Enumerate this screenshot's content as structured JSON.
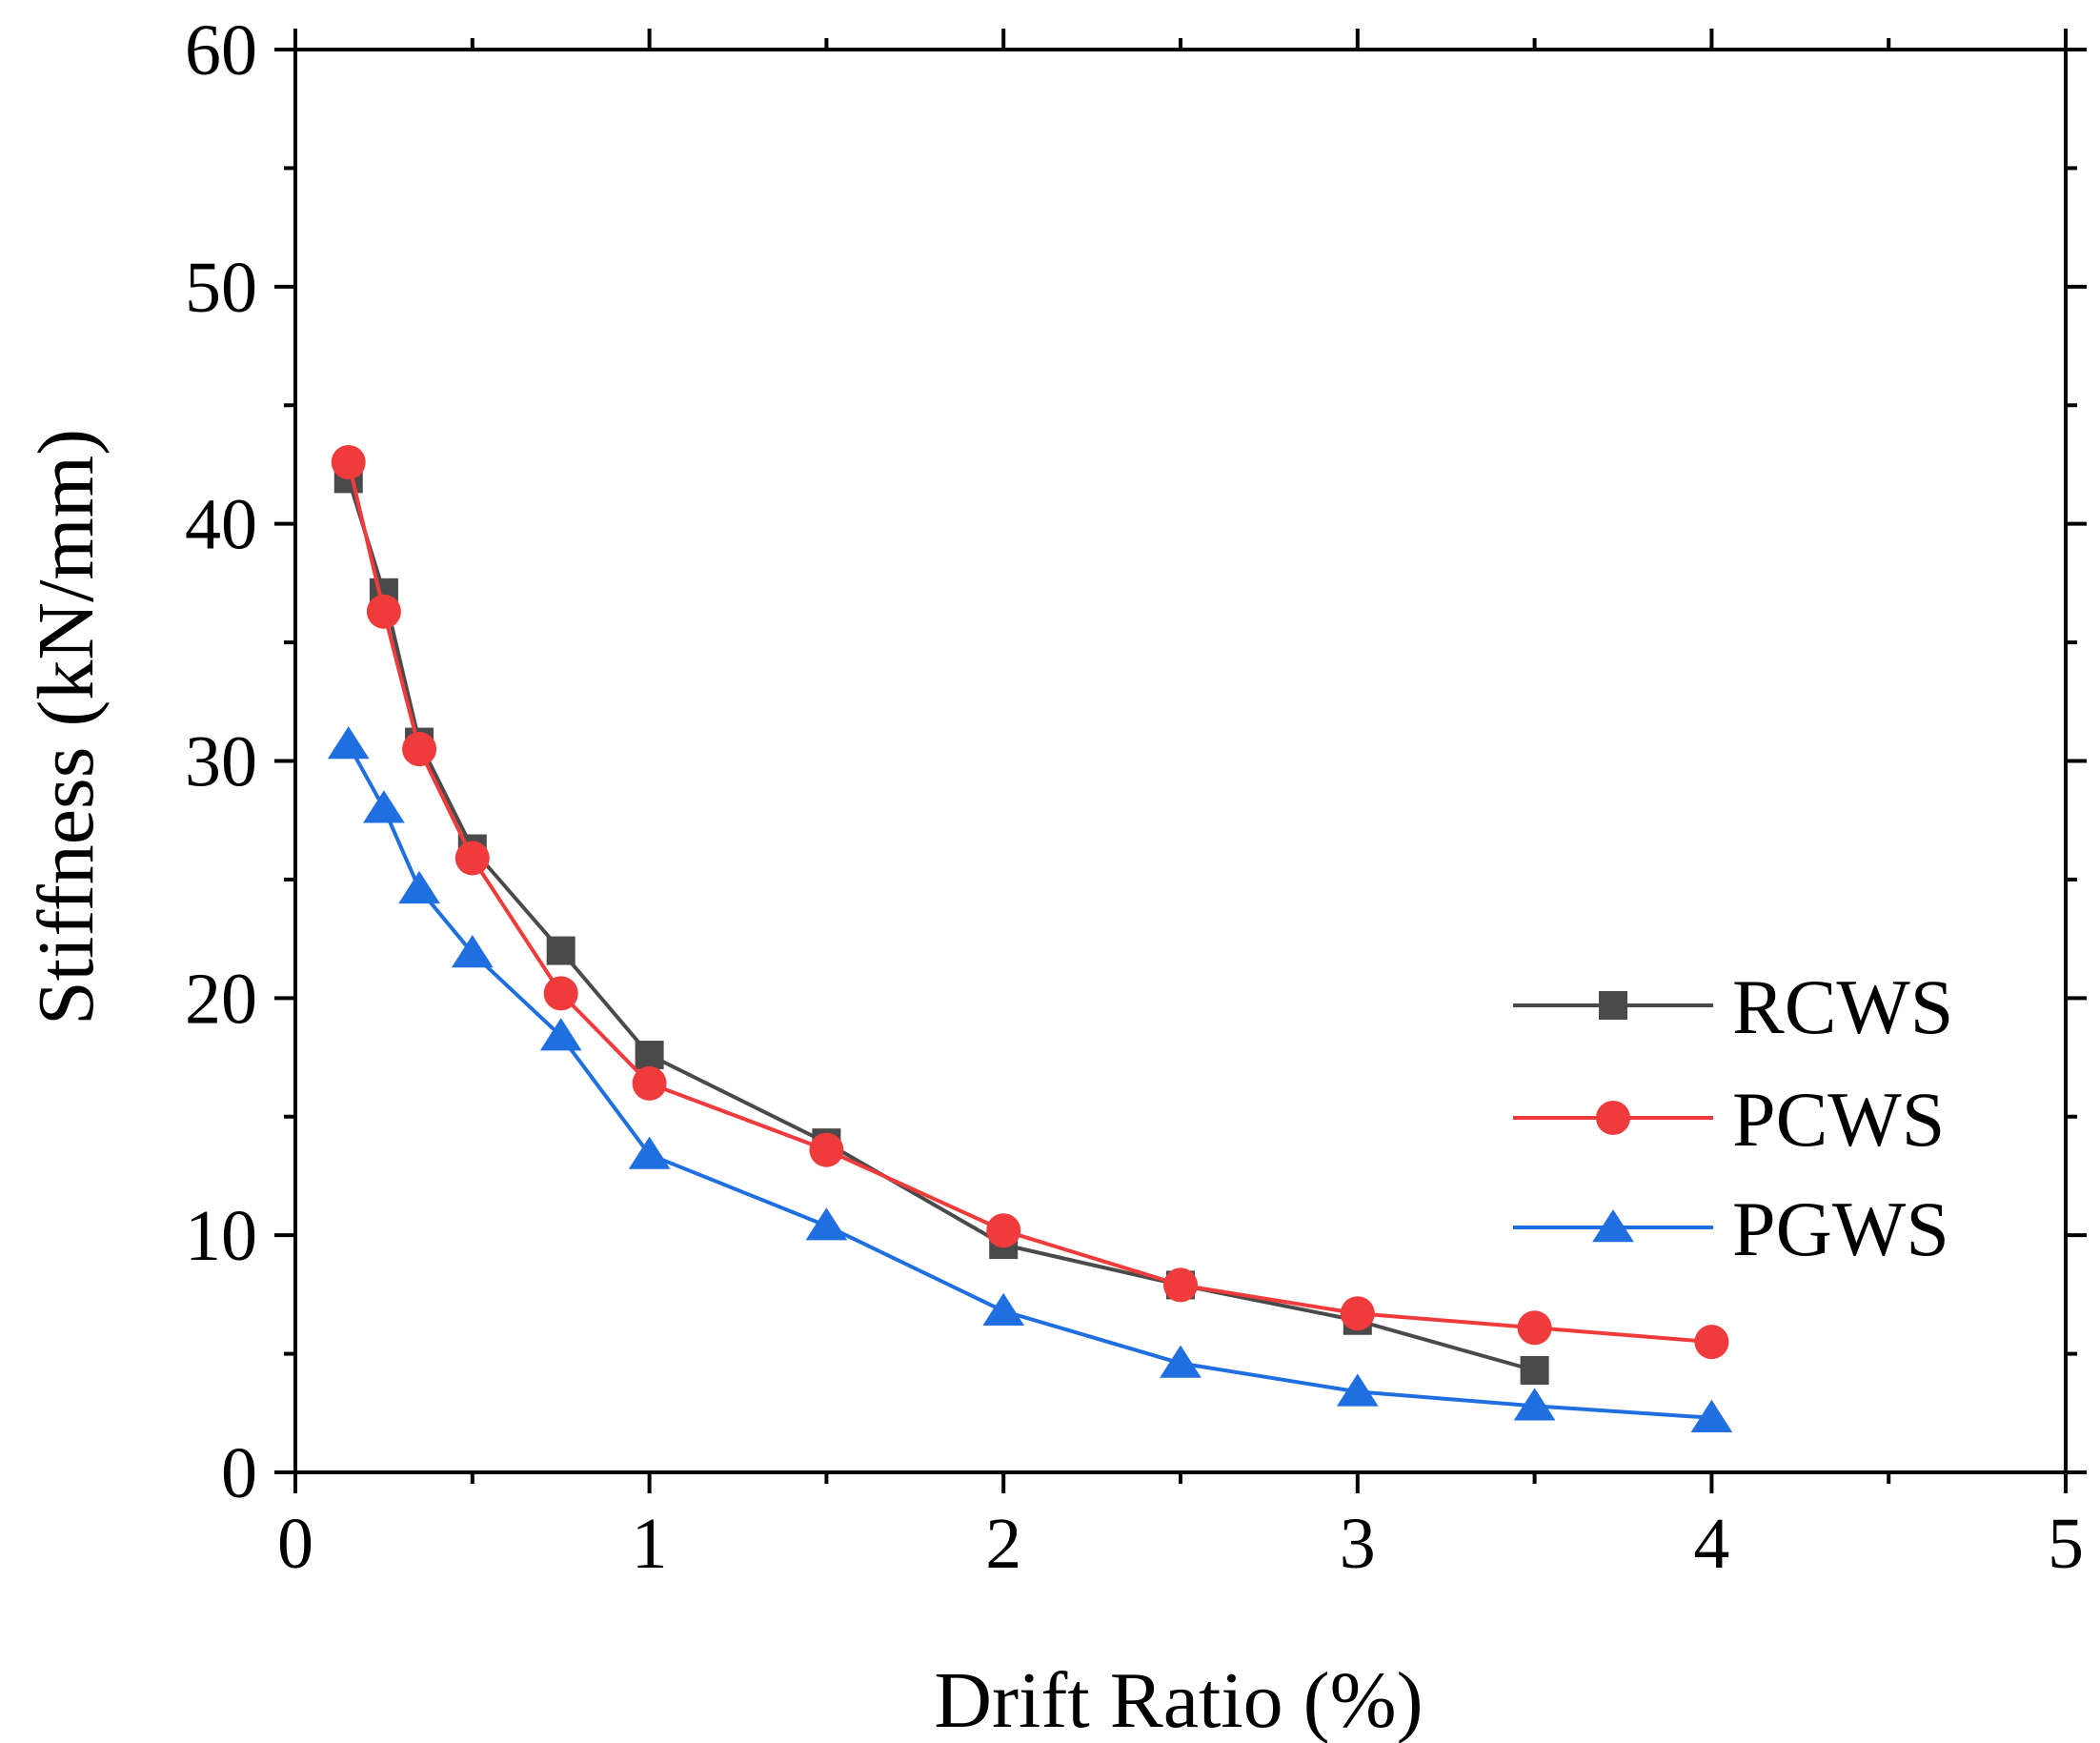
{
  "chart_data": {
    "type": "line",
    "title": "",
    "xlabel": "Drift Ratio (%)",
    "ylabel": "Stiffness (kN/mm)",
    "xlim": [
      0,
      5
    ],
    "ylim": [
      0,
      60
    ],
    "x_ticks": [
      0,
      1,
      2,
      3,
      4,
      5
    ],
    "y_ticks": [
      0,
      10,
      20,
      30,
      40,
      50,
      60
    ],
    "grid": false,
    "legend_position": "right",
    "series": [
      {
        "name": "RCWS",
        "color": "#4a4a4a",
        "marker": "square",
        "x": [
          0.15,
          0.25,
          0.35,
          0.5,
          0.75,
          1,
          1.5,
          2,
          2.5,
          3,
          3.5
        ],
        "values": [
          41.9,
          37.1,
          30.8,
          26.3,
          22.0,
          17.6,
          13.9,
          9.6,
          7.9,
          6.4,
          4.3
        ]
      },
      {
        "name": "PCWS",
        "color": "#ef3b3b",
        "marker": "circle",
        "x": [
          0.15,
          0.25,
          0.35,
          0.5,
          0.75,
          1,
          1.5,
          2,
          2.5,
          3,
          3.5,
          4
        ],
        "values": [
          42.6,
          36.3,
          30.5,
          25.9,
          20.2,
          16.4,
          13.6,
          10.2,
          7.9,
          6.7,
          6.1,
          5.5
        ]
      },
      {
        "name": "PGWS",
        "color": "#1f6fe0",
        "marker": "triangle",
        "x": [
          0.15,
          0.25,
          0.35,
          0.5,
          0.75,
          1,
          1.5,
          2,
          2.5,
          3,
          3.5,
          4
        ],
        "values": [
          30.7,
          28.0,
          24.6,
          21.9,
          18.4,
          13.4,
          10.4,
          6.8,
          4.6,
          3.4,
          2.8,
          2.3
        ]
      }
    ]
  }
}
